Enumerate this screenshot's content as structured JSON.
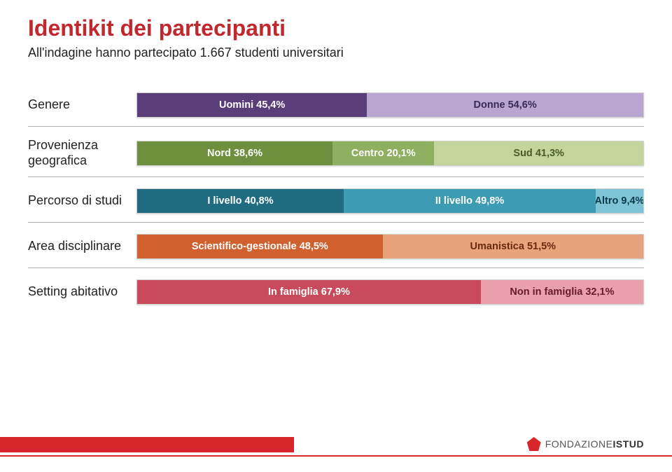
{
  "title": "Identikit dei partecipanti",
  "subtitle": "All'indagine hanno partecipato 1.667 studenti universitari",
  "rows": [
    {
      "label": "Genere",
      "segments": [
        {
          "text": "Uomini 45,4%",
          "pct": 45.4,
          "bg": "#5a3e7a",
          "fg": "#ffffff"
        },
        {
          "text": "Donne 54,6%",
          "pct": 54.6,
          "bg": "#b8a6d0",
          "fg": "#3a2a5a"
        }
      ]
    },
    {
      "label": "Provenienza geografica",
      "segments": [
        {
          "text": "Nord 38,6%",
          "pct": 38.6,
          "bg": "#6e8f3e",
          "fg": "#ffffff"
        },
        {
          "text": "Centro 20,1%",
          "pct": 20.1,
          "bg": "#8fb060",
          "fg": "#ffffff"
        },
        {
          "text": "Sud 41,3%",
          "pct": 41.3,
          "bg": "#c3d59a",
          "fg": "#4a5a2a"
        }
      ]
    },
    {
      "label": "Percorso di studi",
      "segments": [
        {
          "text": "I livello 40,8%",
          "pct": 40.8,
          "bg": "#1f6b80",
          "fg": "#ffffff"
        },
        {
          "text": "II livello 49,8%",
          "pct": 49.8,
          "bg": "#3d9bb3",
          "fg": "#ffffff"
        },
        {
          "text": "Altro 9,4%",
          "pct": 9.4,
          "bg": "#7fc4d6",
          "fg": "#0a3a4a"
        }
      ]
    },
    {
      "label": "Area disciplinare",
      "segments": [
        {
          "text": "Scientifico-gestionale 48,5%",
          "pct": 48.5,
          "bg": "#d0602d",
          "fg": "#ffffff"
        },
        {
          "text": "Umanistica 51,5%",
          "pct": 51.5,
          "bg": "#e8a37c",
          "fg": "#6a2a10"
        }
      ]
    },
    {
      "label": "Setting abitativo",
      "segments": [
        {
          "text": "In famiglia 67,9%",
          "pct": 67.9,
          "bg": "#c94a5a",
          "fg": "#ffffff"
        },
        {
          "text": "Non in famiglia 32,1%",
          "pct": 32.1,
          "bg": "#e8a0aa",
          "fg": "#6a1a2a"
        }
      ]
    }
  ],
  "footer": {
    "brand1": "FONDAZIONE",
    "brand2": "ISTUD"
  }
}
